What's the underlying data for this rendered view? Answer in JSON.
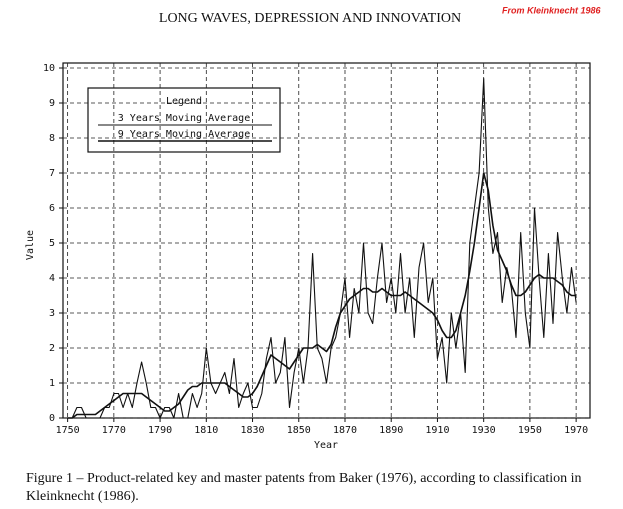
{
  "chart_data": {
    "type": "line",
    "title": "LONG WAVES, DEPRESSION AND INNOVATION",
    "source": "From Kleinknecht 1986",
    "x_label": "Year",
    "y_label": "Value",
    "legend_title": "Legend",
    "caption": "Figure 1 – Product-related key and master patents from Baker (1976), according to classification in Kleinknecht (1986).",
    "x": [
      1750,
      1752,
      1754,
      1756,
      1758,
      1760,
      1762,
      1764,
      1766,
      1768,
      1770,
      1772,
      1774,
      1776,
      1778,
      1780,
      1782,
      1784,
      1786,
      1788,
      1790,
      1792,
      1794,
      1796,
      1798,
      1800,
      1802,
      1804,
      1806,
      1808,
      1810,
      1812,
      1814,
      1816,
      1818,
      1820,
      1822,
      1824,
      1826,
      1828,
      1830,
      1832,
      1834,
      1836,
      1838,
      1840,
      1842,
      1844,
      1846,
      1848,
      1850,
      1852,
      1854,
      1856,
      1858,
      1860,
      1862,
      1864,
      1866,
      1868,
      1870,
      1872,
      1874,
      1876,
      1878,
      1880,
      1882,
      1884,
      1886,
      1888,
      1890,
      1892,
      1894,
      1896,
      1898,
      1900,
      1902,
      1904,
      1906,
      1908,
      1910,
      1912,
      1914,
      1916,
      1918,
      1920,
      1922,
      1924,
      1926,
      1928,
      1930,
      1932,
      1934,
      1936,
      1938,
      1940,
      1942,
      1944,
      1946,
      1948,
      1950,
      1952,
      1954,
      1956,
      1958,
      1960,
      1962,
      1964,
      1966,
      1968,
      1970
    ],
    "series": [
      {
        "name": "3 Years Moving Average",
        "color": "#111111",
        "width": 1.1,
        "values": [
          0,
          0,
          0.3,
          0.3,
          0,
          0,
          0,
          0,
          0.3,
          0.3,
          0.7,
          0.7,
          0.3,
          0.7,
          0.3,
          1.0,
          1.6,
          1.0,
          0.3,
          0.3,
          0,
          0.3,
          0.3,
          0,
          0.7,
          0,
          0,
          0.7,
          0.3,
          0.7,
          2.0,
          1.0,
          0.7,
          1.0,
          1.3,
          0.7,
          1.7,
          0.3,
          0.7,
          1.0,
          0.3,
          0.3,
          0.7,
          1.7,
          2.3,
          1.0,
          1.3,
          2.3,
          0.3,
          1.3,
          2.0,
          1.0,
          2.0,
          4.7,
          2.0,
          1.7,
          1.0,
          2.0,
          2.3,
          3.0,
          4.0,
          2.3,
          3.7,
          3.0,
          5.0,
          3.0,
          2.7,
          4.0,
          5.0,
          3.3,
          4.0,
          3.0,
          4.7,
          3.0,
          4.0,
          2.3,
          4.3,
          5.0,
          3.3,
          4.0,
          1.7,
          2.3,
          1.0,
          3.0,
          2.0,
          3.0,
          1.3,
          5.0,
          6.0,
          7.0,
          9.7,
          6.0,
          4.7,
          5.3,
          3.3,
          4.3,
          3.7,
          2.3,
          5.3,
          3.0,
          2.0,
          6.0,
          4.0,
          2.3,
          4.7,
          2.7,
          5.3,
          4.0,
          3.0,
          4.3,
          3.3
        ]
      },
      {
        "name": "9 Years Moving Average",
        "color": "#111111",
        "width": 1.6,
        "values": [
          0,
          0,
          0.1,
          0.1,
          0.1,
          0.1,
          0.1,
          0.2,
          0.3,
          0.4,
          0.5,
          0.6,
          0.7,
          0.7,
          0.7,
          0.7,
          0.7,
          0.6,
          0.5,
          0.4,
          0.3,
          0.2,
          0.2,
          0.3,
          0.4,
          0.6,
          0.8,
          0.9,
          0.9,
          1.0,
          1.0,
          1.0,
          1.0,
          1.0,
          1.0,
          0.9,
          0.8,
          0.7,
          0.6,
          0.6,
          0.7,
          0.9,
          1.2,
          1.5,
          1.8,
          1.7,
          1.6,
          1.5,
          1.4,
          1.6,
          1.8,
          2.0,
          2.0,
          2.0,
          2.1,
          2.0,
          1.9,
          2.1,
          2.6,
          3.0,
          3.2,
          3.4,
          3.5,
          3.6,
          3.7,
          3.7,
          3.6,
          3.6,
          3.7,
          3.6,
          3.5,
          3.5,
          3.5,
          3.6,
          3.5,
          3.4,
          3.3,
          3.2,
          3.1,
          3.0,
          2.8,
          2.5,
          2.3,
          2.3,
          2.5,
          3.0,
          3.5,
          4.2,
          5.0,
          6.0,
          7.0,
          6.5,
          5.5,
          4.8,
          4.5,
          4.2,
          3.8,
          3.5,
          3.5,
          3.6,
          3.8,
          4.0,
          4.1,
          4.0,
          4.0,
          4.0,
          3.9,
          3.8,
          3.6,
          3.5,
          3.5
        ]
      }
    ],
    "xlim": [
      1748,
      1976
    ],
    "ylim": [
      0,
      10
    ],
    "xticks": [
      1750,
      1770,
      1790,
      1810,
      1830,
      1850,
      1870,
      1890,
      1910,
      1930,
      1950,
      1970
    ],
    "yticks": [
      0,
      1,
      2,
      3,
      4,
      5,
      6,
      7,
      8,
      9,
      10
    ],
    "grid": true
  }
}
